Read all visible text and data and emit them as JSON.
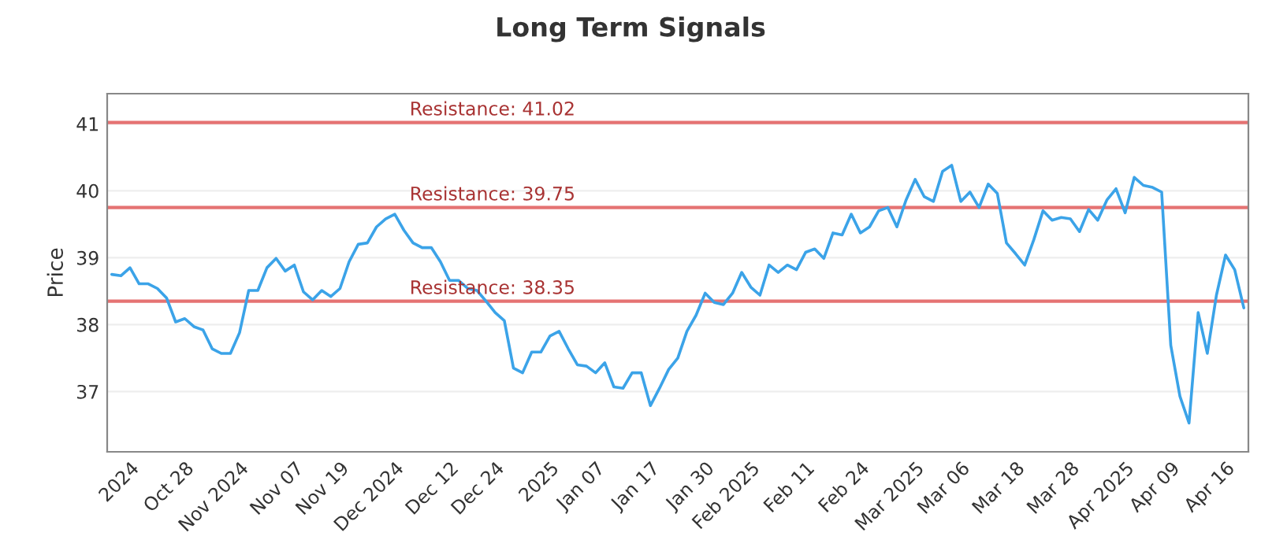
{
  "chart_data": {
    "type": "line",
    "title": "Long Term Signals",
    "ylabel": "Price",
    "categories": [
      null,
      null,
      "2024",
      null,
      null,
      null,
      null,
      null,
      "Oct 28",
      null,
      null,
      null,
      null,
      null,
      "Nov 2024",
      null,
      null,
      null,
      null,
      null,
      "Nov 07",
      null,
      null,
      null,
      null,
      "Nov 19",
      null,
      null,
      null,
      null,
      null,
      "Dec 2024",
      null,
      null,
      null,
      null,
      null,
      "Dec 12",
      null,
      null,
      null,
      null,
      "Dec 24",
      null,
      null,
      null,
      null,
      null,
      "2025",
      null,
      null,
      null,
      null,
      "Jan 07",
      null,
      null,
      null,
      null,
      null,
      "Jan 17",
      null,
      null,
      null,
      null,
      null,
      "Jan 30",
      null,
      null,
      null,
      null,
      "Feb 2025",
      null,
      null,
      null,
      null,
      null,
      "Feb 11",
      null,
      null,
      null,
      null,
      null,
      "Feb 24",
      null,
      null,
      null,
      null,
      null,
      "Mar 2025",
      null,
      null,
      null,
      null,
      "Mar 06",
      null,
      null,
      null,
      null,
      null,
      "Mar 18",
      null,
      null,
      null,
      null,
      null,
      "Mar 28",
      null,
      null,
      null,
      null,
      null,
      "Apr 2025",
      null,
      null,
      null,
      null,
      "Apr 09",
      null,
      null,
      null,
      null,
      null,
      "Apr 16",
      null,
      null
    ],
    "series": [
      {
        "color": "#3ba3e8",
        "values": [
          38.75,
          38.73,
          38.85,
          38.61,
          38.61,
          38.54,
          38.4,
          38.04,
          38.09,
          37.97,
          37.92,
          37.64,
          37.57,
          37.57,
          37.88,
          38.51,
          38.51,
          38.85,
          38.99,
          38.8,
          38.89,
          38.49,
          38.37,
          38.51,
          38.42,
          38.54,
          38.94,
          39.2,
          39.22,
          39.46,
          39.58,
          39.65,
          39.41,
          39.22,
          39.15,
          39.15,
          38.94,
          38.66,
          38.66,
          38.54,
          38.51,
          38.35,
          38.18,
          38.06,
          37.35,
          37.28,
          37.59,
          37.59,
          37.83,
          37.9,
          37.64,
          37.4,
          37.38,
          37.28,
          37.43,
          37.07,
          37.05,
          37.28,
          37.28,
          36.79,
          37.05,
          37.33,
          37.5,
          37.9,
          38.14,
          38.47,
          38.33,
          38.3,
          38.47,
          38.78,
          38.56,
          38.44,
          38.89,
          38.78,
          38.89,
          38.82,
          39.08,
          39.13,
          38.99,
          39.37,
          39.34,
          39.65,
          39.37,
          39.46,
          39.7,
          39.75,
          39.46,
          39.86,
          40.17,
          39.91,
          39.84,
          40.29,
          40.38,
          39.84,
          39.98,
          39.75,
          40.1,
          39.96,
          39.22,
          39.06,
          38.89,
          39.27,
          39.7,
          39.56,
          39.6,
          39.58,
          39.39,
          39.72,
          39.56,
          39.86,
          40.03,
          39.67,
          40.2,
          40.08,
          40.05,
          39.98,
          37.69,
          36.93,
          36.53,
          38.18,
          37.57,
          38.44,
          39.04,
          38.82,
          38.25
        ]
      }
    ],
    "ylim": [
      36.1,
      41.45
    ],
    "yticks": [
      37,
      38,
      39,
      40,
      41
    ],
    "grid": "y",
    "marker": "none",
    "line_style": "solid",
    "ref_lines": [
      {
        "axis": "y",
        "value": 41.02,
        "label": "Resistance: 41.02",
        "color": "#e57373"
      },
      {
        "axis": "y",
        "value": 39.75,
        "label": "Resistance: 39.75",
        "color": "#e57373"
      },
      {
        "axis": "y",
        "value": 38.35,
        "label": "Resistance: 38.35",
        "color": "#e57373"
      }
    ]
  }
}
